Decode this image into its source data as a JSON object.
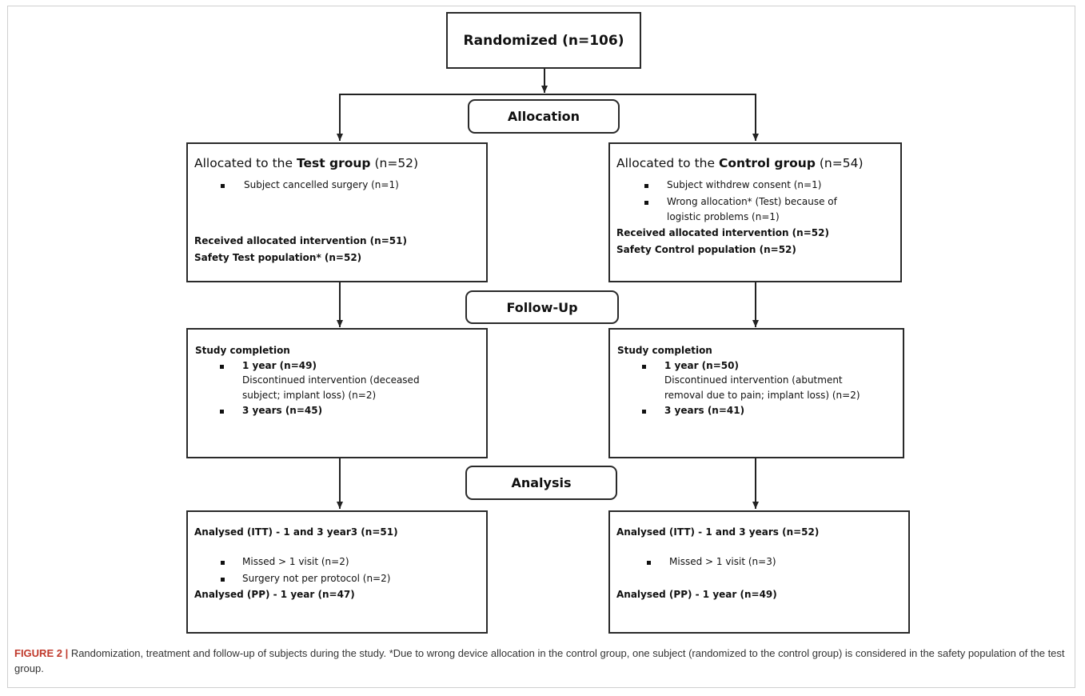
{
  "top": {
    "randomized": "Randomized (n=106)"
  },
  "stages": {
    "allocation": "Allocation",
    "follow_up": "Follow-Up",
    "analysis": "Analysis"
  },
  "test_alloc": {
    "prefix": "Allocated to the ",
    "group": "Test group",
    "suffix": " (n=52)",
    "bullet1": "Subject cancelled surgery (n=1)",
    "received": "Received allocated intervention (n=51)",
    "safety": "Safety Test population* (n=52)"
  },
  "control_alloc": {
    "prefix": "Allocated to the ",
    "group": "Control group",
    "suffix": " (n=54)",
    "bullet1": "Subject withdrew consent (n=1)",
    "bullet2_line1": "Wrong allocation* (Test) because of",
    "bullet2_line2": "logistic problems (n=1)",
    "received": "Received allocated intervention (n=52)",
    "safety": "Safety Control population (n=52)"
  },
  "test_follow": {
    "header": "Study completion",
    "year1": "1 year (n=49)",
    "disc_line1": "Discontinued intervention (deceased",
    "disc_line2": "subject; implant loss) (n=2)",
    "year3": "3 years (n=45)"
  },
  "control_follow": {
    "header": "Study completion",
    "year1": "1 year (n=50)",
    "disc_line1": "Discontinued intervention (abutment",
    "disc_line2": "removal due to pain; implant loss) (n=2)",
    "year3": "3 years (n=41)"
  },
  "test_analysis": {
    "itt": "Analysed (ITT) - 1 and 3 year3 (n=51)",
    "bullet1": "Missed > 1 visit (n=2)",
    "bullet2": "Surgery not per protocol (n=2)",
    "pp": "Analysed (PP) - 1 year (n=47)"
  },
  "control_analysis": {
    "itt": "Analysed (ITT) - 1 and 3 years (n=52)",
    "bullet1": "Missed > 1 visit (n=3)",
    "pp": "Analysed (PP) - 1 year (n=49)"
  },
  "caption": {
    "label": "FIGURE 2 |",
    "text": " Randomization, treatment and follow-up of subjects during the study. *Due to wrong device allocation in the control group, one subject (randomized to the control group) is considered in the safety population of the test group."
  }
}
